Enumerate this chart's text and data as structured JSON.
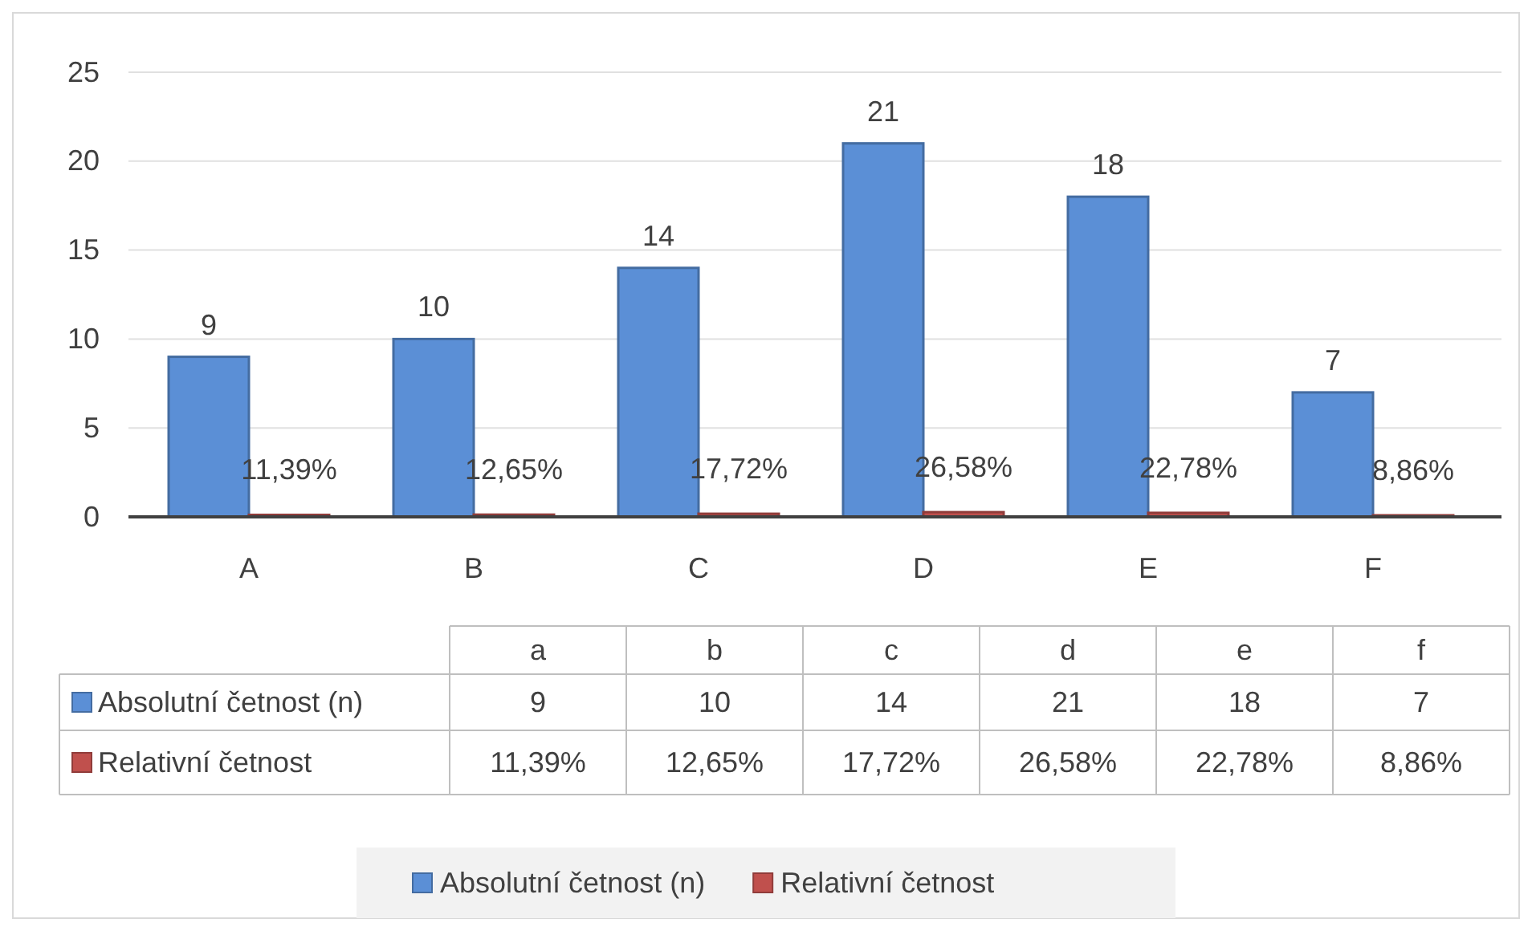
{
  "chart_data": {
    "type": "bar",
    "categories": [
      "A",
      "B",
      "C",
      "D",
      "E",
      "F"
    ],
    "series": [
      {
        "name": "Absolutní četnost (n)",
        "color": "#5b8fd6",
        "values": [
          9,
          10,
          14,
          21,
          18,
          7
        ],
        "value_labels": [
          "9",
          "10",
          "14",
          "21",
          "18",
          "7"
        ]
      },
      {
        "name": "Relativní četnost",
        "color": "#c0504d",
        "values": [
          0.1139,
          0.1265,
          0.1772,
          0.2658,
          0.2278,
          0.0886
        ],
        "value_labels": [
          "11,39%",
          "12,65%",
          "17,72%",
          "26,58%",
          "22,78%",
          "8,86%"
        ]
      }
    ],
    "ylim": [
      0,
      25
    ],
    "yticks": [
      0,
      5,
      10,
      15,
      20,
      25
    ],
    "grid": "y",
    "legend": "bottom",
    "data_labels": true,
    "annotations": [
      "a",
      "b",
      "c",
      "d",
      "e",
      "f"
    ]
  }
}
